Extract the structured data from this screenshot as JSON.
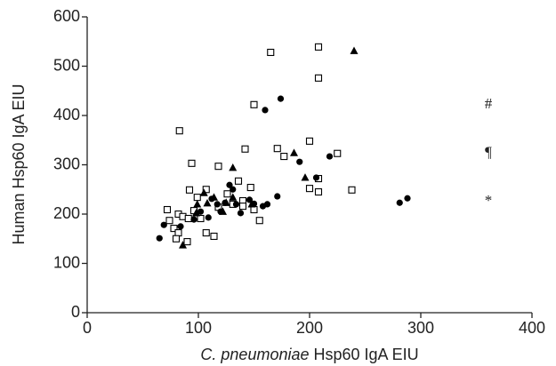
{
  "chart_data": {
    "type": "scatter",
    "xlabel": {
      "italic": "C. pneumoniae",
      "text": "Hsp60 IgA  EIU"
    },
    "ylabel": "Human Hsp60 IgA  EIU",
    "xlim": [
      0,
      400
    ],
    "xticks": [
      0,
      100,
      200,
      300,
      400
    ],
    "ylim": [
      0,
      600
    ],
    "yticks": [
      0,
      100,
      200,
      300,
      400,
      500,
      600
    ],
    "grid": false,
    "annotations": [
      "#",
      "¶",
      "*"
    ],
    "series": [
      {
        "marker": "open-square",
        "color": "#000000",
        "x": [
          208,
          165,
          208,
          150,
          83,
          142,
          200,
          171,
          177,
          225,
          208,
          200,
          208,
          238,
          136,
          94,
          118,
          92,
          99,
          107,
          118,
          126,
          147,
          140,
          82,
          86,
          74,
          78,
          82,
          91,
          96,
          102,
          107,
          114,
          90,
          80,
          131,
          140,
          150,
          155,
          72
        ],
        "values": [
          539,
          528,
          476,
          422,
          369,
          332,
          348,
          333,
          317,
          323,
          272,
          252,
          245,
          249,
          267,
          303,
          297,
          249,
          234,
          250,
          214,
          241,
          254,
          227,
          200,
          195,
          187,
          171,
          162,
          191,
          207,
          191,
          162,
          155,
          144,
          150,
          220,
          216,
          209,
          187,
          209
        ]
      },
      {
        "marker": "circle",
        "color": "#000000",
        "x": [
          65,
          69,
          84,
          174,
          160,
          191,
          206,
          218,
          281,
          288,
          171,
          162,
          158,
          150,
          146,
          131,
          128,
          134,
          124,
          117,
          112,
          102,
          96,
          109,
          120,
          138
        ],
        "values": [
          151,
          178,
          175,
          434,
          411,
          306,
          274,
          317,
          223,
          232,
          236,
          220,
          216,
          221,
          229,
          250,
          259,
          220,
          223,
          220,
          231,
          205,
          189,
          193,
          205,
          202
        ]
      },
      {
        "marker": "triangle",
        "color": "#000000",
        "x": [
          240,
          186,
          196,
          131,
          125,
          105,
          108,
          99,
          86,
          98,
          122,
          131,
          148,
          114
        ],
        "values": [
          531,
          324,
          274,
          294,
          223,
          243,
          222,
          220,
          137,
          202,
          205,
          234,
          220,
          234
        ]
      }
    ]
  }
}
